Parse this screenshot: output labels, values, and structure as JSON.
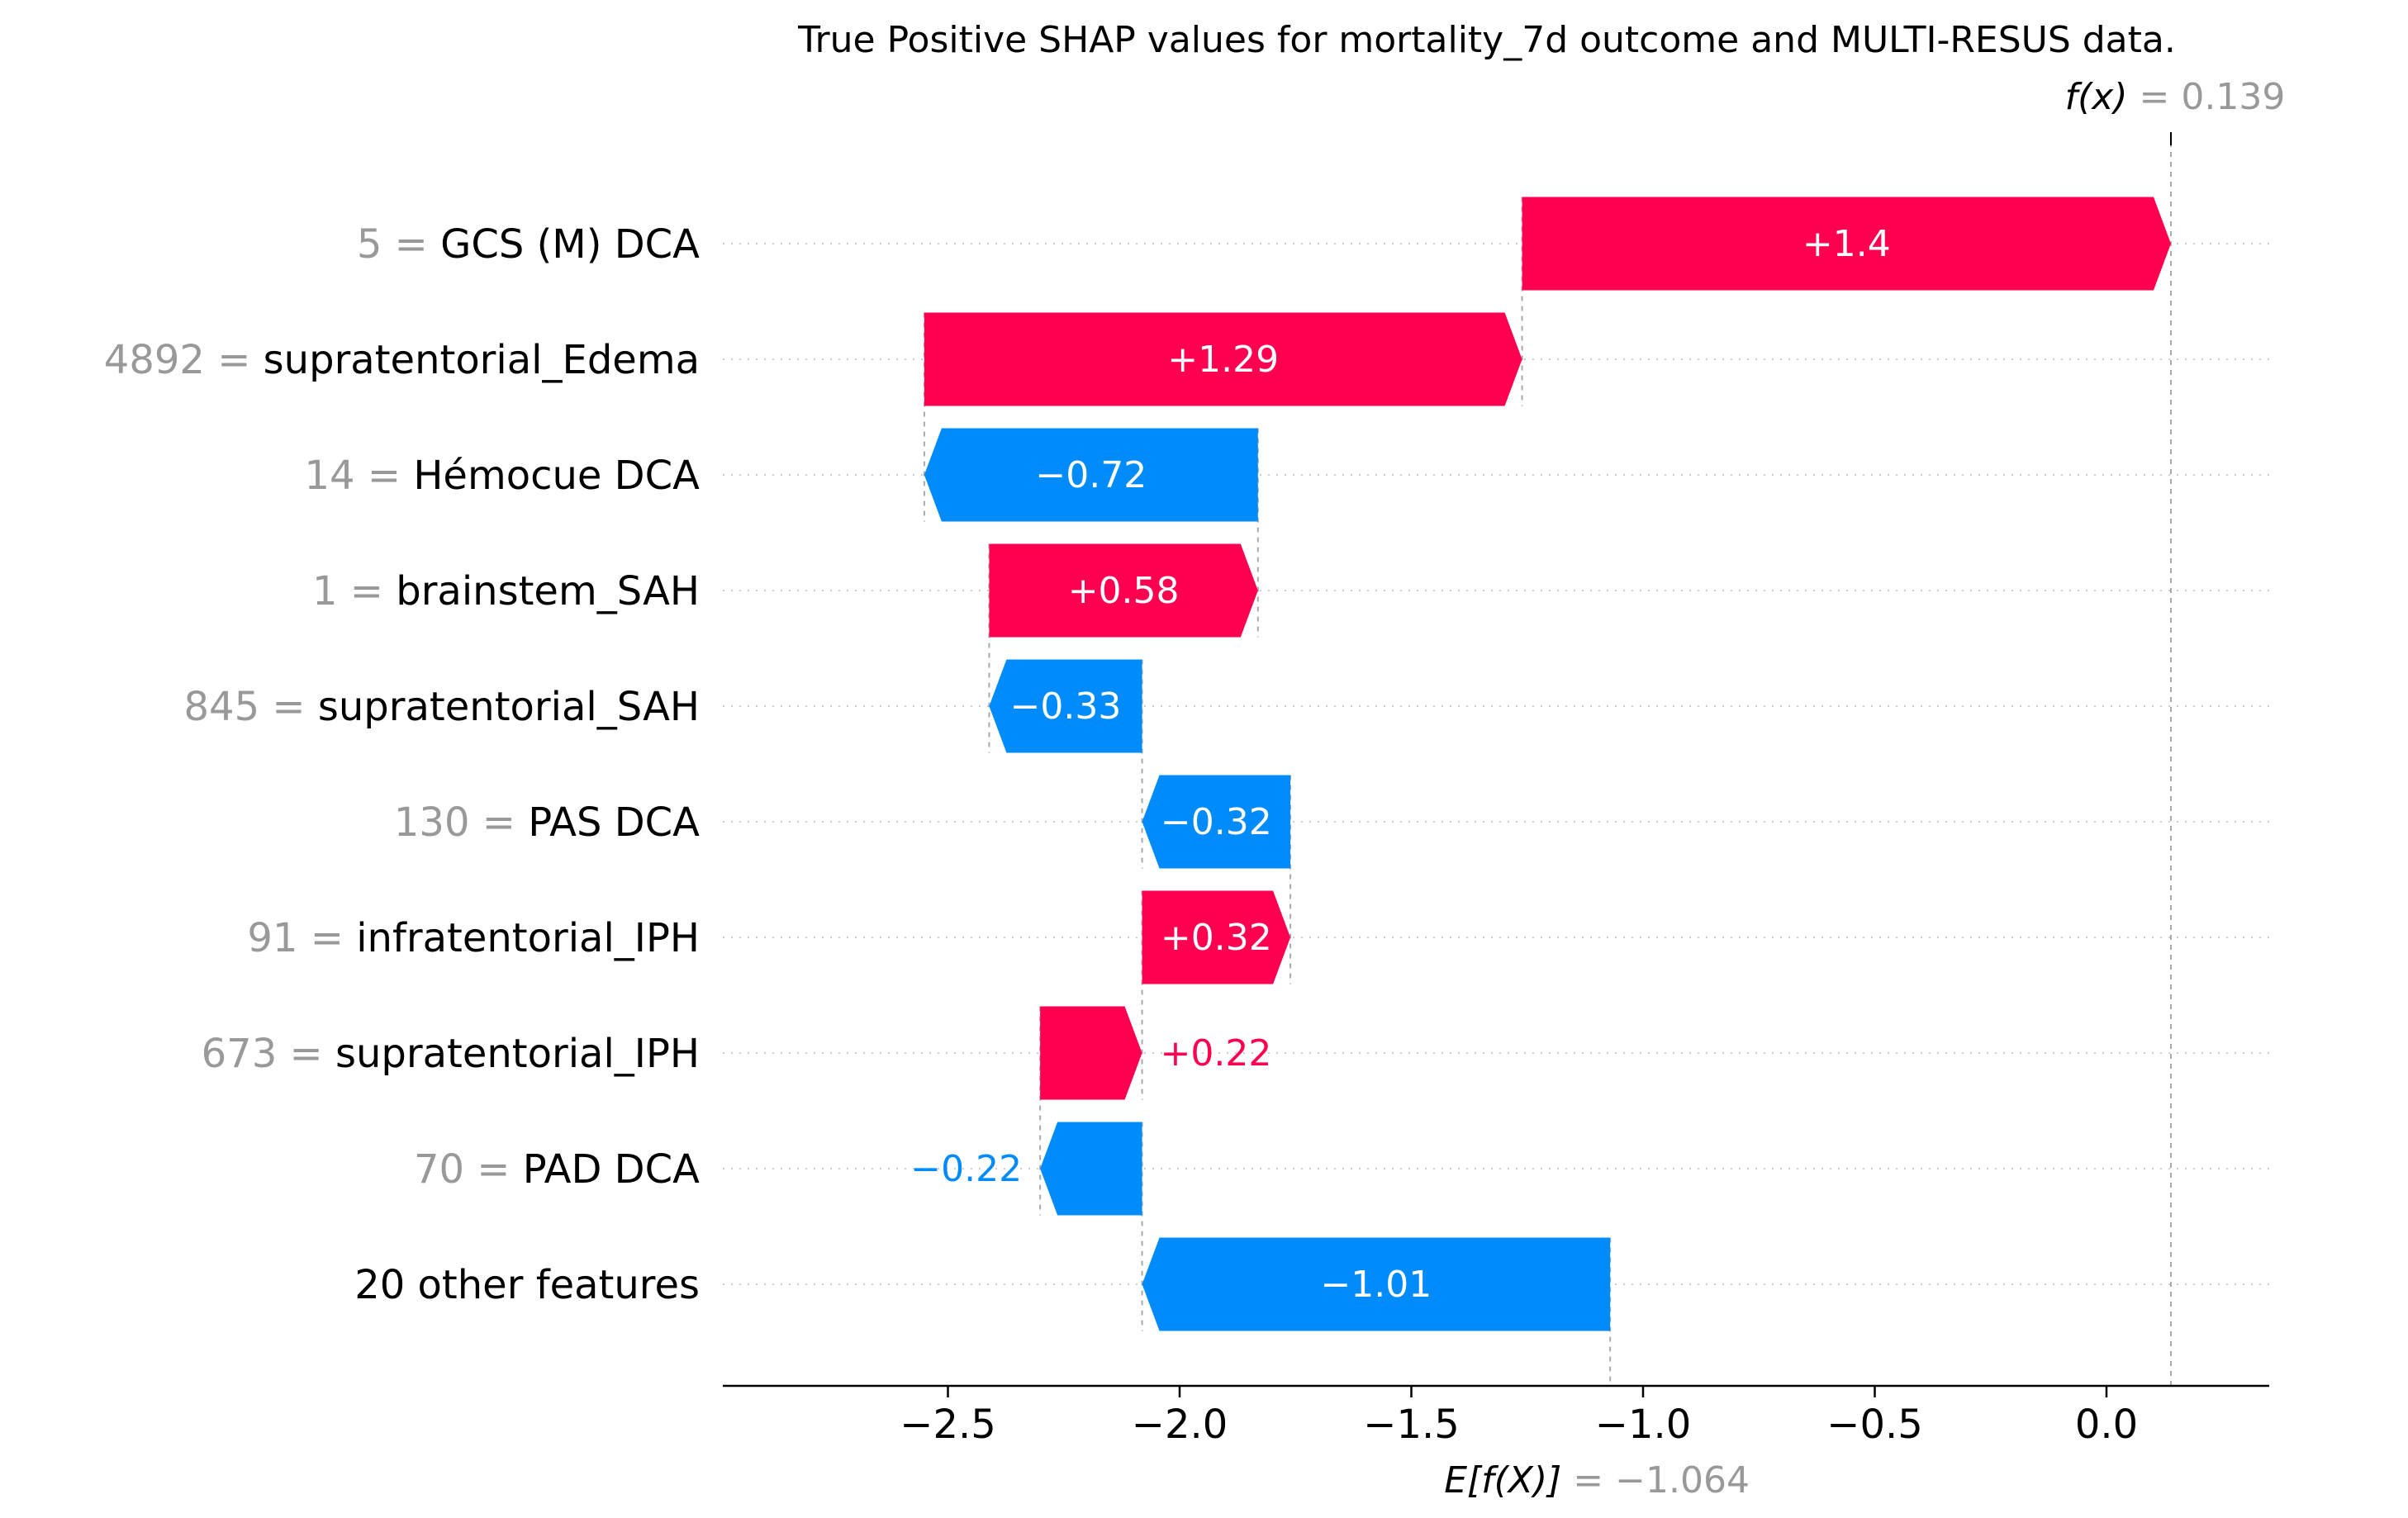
{
  "chart_data": {
    "type": "waterfall",
    "title": "True Positive SHAP values for mortality_7d outcome and MULTI-RESUS data.",
    "xlabel": "",
    "ylabel": "",
    "xlim": [
      -2.95,
      0.32
    ],
    "xticks": [
      -2.5,
      -2.0,
      -1.5,
      -1.0,
      -0.5,
      0.0
    ],
    "xtick_labels": [
      "−2.5",
      "−2.0",
      "−1.5",
      "−1.0",
      "−0.5",
      "0.0"
    ],
    "base_value": -1.064,
    "output_value": 0.139,
    "fx_label": {
      "name": "f(x)",
      "eq": " = ",
      "value": "0.139"
    },
    "efx_label": {
      "name": "E[f(X)]",
      "eq": " = ",
      "value": "−1.064"
    },
    "grid": "dotted horizontal",
    "colors": {
      "positive": "#ff0051",
      "negative": "#008bfb",
      "feature_value": "#999999",
      "text": "#000000"
    },
    "features": [
      {
        "value": "5",
        "name": "GCS (M) DCA",
        "shap": 1.4,
        "label": "+1.4",
        "label_inside": true
      },
      {
        "value": "4892",
        "name": "supratentorial_Edema",
        "shap": 1.29,
        "label": "+1.29",
        "label_inside": true
      },
      {
        "value": "14",
        "name": "Hémocue DCA",
        "shap": -0.72,
        "label": "−0.72",
        "label_inside": true
      },
      {
        "value": "1",
        "name": "brainstem_SAH",
        "shap": 0.58,
        "label": "+0.58",
        "label_inside": true
      },
      {
        "value": "845",
        "name": "supratentorial_SAH",
        "shap": -0.33,
        "label": "−0.33",
        "label_inside": true
      },
      {
        "value": "130",
        "name": "PAS DCA",
        "shap": -0.32,
        "label": "−0.32",
        "label_inside": true
      },
      {
        "value": "91",
        "name": "infratentorial_IPH",
        "shap": 0.32,
        "label": "+0.32",
        "label_inside": true
      },
      {
        "value": "673",
        "name": "supratentorial_IPH",
        "shap": 0.22,
        "label": "+0.22",
        "label_inside": false
      },
      {
        "value": "70",
        "name": "PAD DCA",
        "shap": -0.22,
        "label": "−0.22",
        "label_inside": false
      },
      {
        "value": "",
        "name": "20 other features",
        "shap": -1.01,
        "label": "−1.01",
        "label_inside": true
      }
    ]
  }
}
